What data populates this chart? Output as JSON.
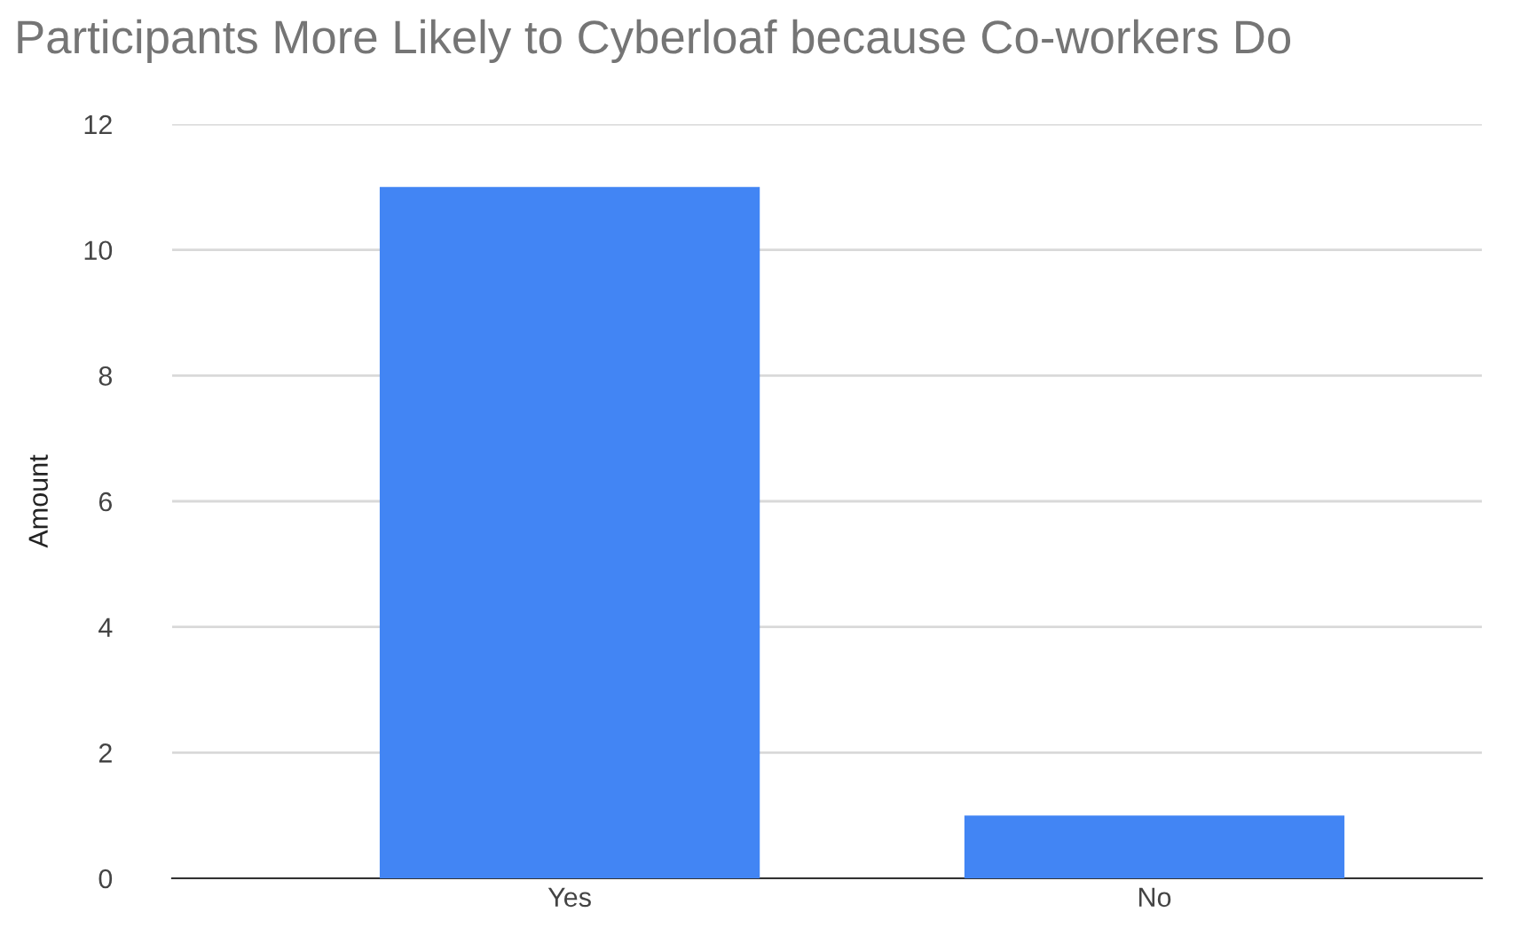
{
  "chart_data": {
    "type": "bar",
    "title": "Participants More Likely to Cyberloaf because Co-workers Do",
    "ylabel": "Amount",
    "categories": [
      "Yes",
      "No"
    ],
    "values": [
      11,
      1
    ],
    "color": "#4285f4",
    "ylim": [
      0,
      12
    ],
    "yticks": [
      0,
      2,
      4,
      6,
      8,
      10,
      12
    ],
    "grid": "y",
    "legend": false
  }
}
